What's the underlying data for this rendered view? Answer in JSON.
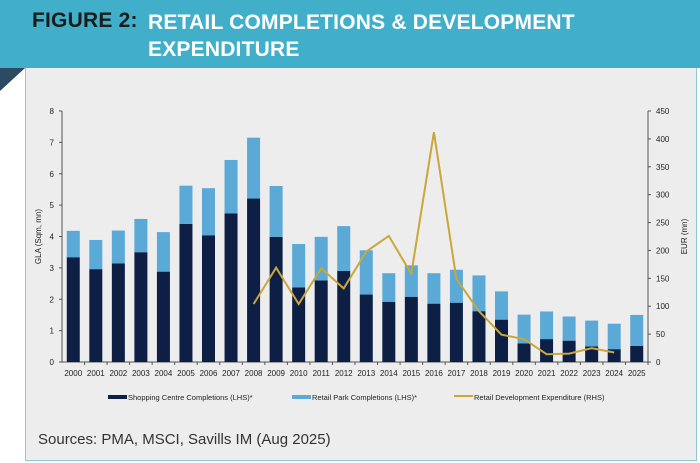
{
  "header": {
    "figure_label": "FIGURE 2:",
    "title": "RETAIL COMPLETIONS & DEVELOPMENT EXPENDITURE"
  },
  "sources": "Sources: PMA, MSCI, Savills IM (Aug 2025)",
  "colors": {
    "header": "#41afc9",
    "shopping_centre": "#0e1f45",
    "retail_park": "#5aa9d6",
    "expenditure": "#c9a73a"
  },
  "chart_data": {
    "type": "bar",
    "stacked": true,
    "categories": [
      "2000",
      "2001",
      "2002",
      "2003",
      "2004",
      "2005",
      "2006",
      "2007",
      "2008",
      "2009",
      "2010",
      "2011",
      "2012",
      "2013",
      "2014",
      "2015",
      "2016",
      "2017",
      "2018",
      "2019",
      "2020",
      "2021",
      "2022",
      "2023",
      "2024",
      "2025"
    ],
    "ylabel": "GLA (Sqm, mn)",
    "ylim": [
      0,
      8
    ],
    "yticks": [
      0,
      1,
      2,
      3,
      4,
      5,
      6,
      7,
      8
    ],
    "y2label": "EUR (mn)",
    "y2lim": [
      0,
      450
    ],
    "y2ticks": [
      0,
      50,
      100,
      150,
      200,
      250,
      300,
      350,
      400,
      450
    ],
    "grid": false,
    "legend_position": "bottom",
    "series": [
      {
        "name": "Shopping Centre Completions (LHS)*",
        "type": "bar",
        "axis": "left",
        "values": [
          3.34,
          2.96,
          3.14,
          3.5,
          2.88,
          4.4,
          4.04,
          4.74,
          5.21,
          3.99,
          2.38,
          2.6,
          2.9,
          2.15,
          1.92,
          2.08,
          1.86,
          1.89,
          1.62,
          1.35,
          0.59,
          0.73,
          0.68,
          0.5,
          0.41,
          0.51
        ]
      },
      {
        "name": "Retail Park Completions (LHS)*",
        "type": "bar",
        "axis": "left",
        "values": [
          0.84,
          0.93,
          1.05,
          1.06,
          1.26,
          1.22,
          1.5,
          1.7,
          1.94,
          1.62,
          1.38,
          1.39,
          1.43,
          1.41,
          0.91,
          1.0,
          0.97,
          1.05,
          1.14,
          0.9,
          0.92,
          0.88,
          0.77,
          0.82,
          0.81,
          0.99
        ]
      },
      {
        "name": "Retail Development Expenditure (RHS)",
        "type": "line",
        "axis": "right",
        "values": [
          null,
          null,
          null,
          null,
          null,
          null,
          null,
          null,
          104,
          169,
          104,
          168,
          132,
          198,
          226,
          158,
          412,
          149,
          91,
          49,
          41,
          14,
          15,
          25,
          17,
          null
        ]
      }
    ]
  }
}
